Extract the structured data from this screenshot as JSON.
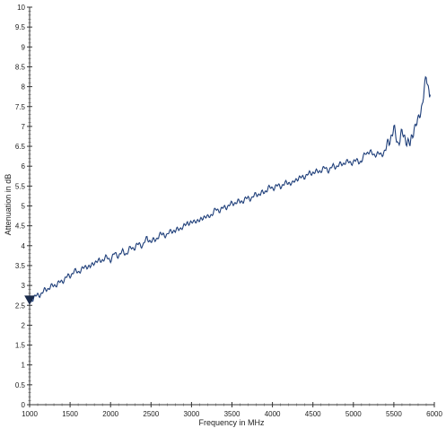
{
  "chart_data": {
    "type": "line",
    "xlabel": "Frequency in MHz",
    "ylabel": "Attenuation in dB",
    "xlim": [
      1000,
      6000
    ],
    "ylim": [
      0,
      10
    ],
    "x_ticks": [
      1000,
      1500,
      2000,
      2500,
      3000,
      3500,
      4000,
      4500,
      5000,
      5500,
      6000
    ],
    "y_ticks": [
      0,
      0.5,
      1,
      1.5,
      2,
      2.5,
      3,
      3.5,
      4,
      4.5,
      5,
      5.5,
      6,
      6.5,
      7,
      7.5,
      8,
      8.5,
      9,
      9.5,
      10
    ],
    "x_tick_labels": [
      "1000",
      "1500",
      "2000",
      "2500",
      "3000",
      "3500",
      "4000",
      "4500",
      "5000",
      "5500",
      "6000"
    ],
    "y_tick_labels": [
      "0",
      "0.5",
      "1",
      "1.5",
      "2",
      "2.5",
      "3",
      "3.5",
      "4",
      "4.5",
      "5",
      "5.5",
      "6",
      "6.5",
      "7",
      "7.5",
      "8",
      "8.5",
      "9",
      "9.5",
      "10"
    ],
    "grid": false,
    "line_color": "#1f3f7a",
    "marker": {
      "x": 1000,
      "y": 2.6
    },
    "series": [
      {
        "x": [
          1000,
          1050,
          1100,
          1150,
          1200,
          1250,
          1300,
          1350,
          1400,
          1450,
          1500,
          1550,
          1600,
          1650,
          1700,
          1750,
          1800,
          1850,
          1900,
          1950,
          2000,
          2050,
          2100,
          2150,
          2200,
          2250,
          2300,
          2350,
          2400,
          2450,
          2500,
          2550,
          2600,
          2650,
          2700,
          2750,
          2800,
          2850,
          2900,
          2950,
          3000,
          3050,
          3100,
          3150,
          3200,
          3250,
          3300,
          3350,
          3400,
          3450,
          3500,
          3550,
          3600,
          3650,
          3700,
          3750,
          3800,
          3850,
          3900,
          3950,
          4000,
          4050,
          4100,
          4150,
          4200,
          4250,
          4300,
          4350,
          4400,
          4450,
          4500,
          4550,
          4600,
          4650,
          4700,
          4750,
          4800,
          4850,
          4900,
          4950,
          5000,
          5050,
          5100,
          5150,
          5200,
          5250,
          5300,
          5350,
          5400,
          5450,
          5500,
          5550,
          5600,
          5650,
          5700,
          5750,
          5800,
          5850,
          5900,
          5950
        ],
        "values": [
          2.6,
          2.7,
          2.75,
          2.8,
          2.9,
          2.95,
          3.0,
          3.05,
          3.1,
          3.2,
          3.25,
          3.35,
          3.35,
          3.4,
          3.5,
          3.45,
          3.6,
          3.6,
          3.65,
          3.7,
          3.65,
          3.8,
          3.75,
          3.85,
          3.8,
          3.95,
          3.95,
          4.05,
          4.0,
          4.2,
          4.1,
          4.15,
          4.25,
          4.3,
          4.25,
          4.4,
          4.35,
          4.45,
          4.45,
          4.6,
          4.55,
          4.65,
          4.6,
          4.75,
          4.7,
          4.8,
          4.9,
          4.9,
          4.95,
          5.0,
          5.05,
          5.1,
          5.1,
          5.15,
          5.2,
          5.2,
          5.3,
          5.3,
          5.35,
          5.45,
          5.45,
          5.5,
          5.5,
          5.55,
          5.6,
          5.55,
          5.7,
          5.7,
          5.75,
          5.8,
          5.85,
          5.85,
          5.9,
          5.95,
          5.9,
          6.0,
          6.0,
          6.05,
          6.1,
          6.1,
          6.1,
          6.15,
          6.1,
          6.35,
          6.35,
          6.3,
          6.3,
          6.3,
          6.4,
          6.7,
          6.9,
          6.6,
          6.8,
          6.7,
          6.5,
          7.0,
          7.1,
          7.6,
          8.2,
          7.8
        ]
      }
    ]
  }
}
